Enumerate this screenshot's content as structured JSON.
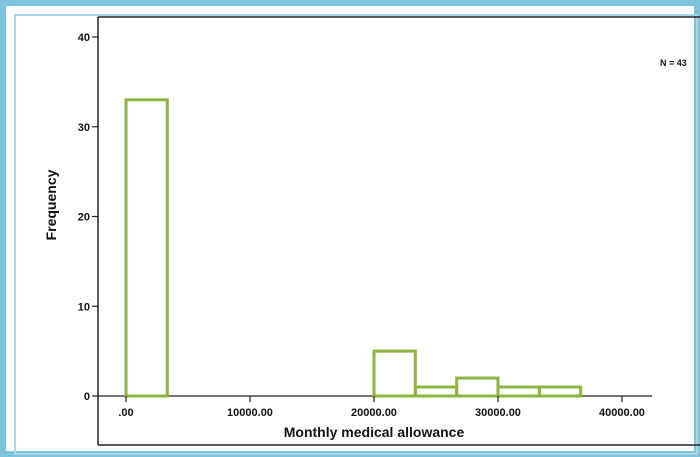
{
  "chart_data": {
    "type": "bar",
    "subtype": "histogram",
    "xlabel": "Monthly medical allowance",
    "ylabel": "Frequency",
    "x_ticks": [
      ".00",
      "10000.00",
      "20000.00",
      "30000.00",
      "40000.00"
    ],
    "x_tick_values": [
      0,
      10000,
      20000,
      30000,
      40000
    ],
    "y_ticks": [
      0,
      10,
      20,
      30,
      40
    ],
    "ylim": [
      0,
      40
    ],
    "bins": [
      {
        "start": 0,
        "end": 3333,
        "value": 33
      },
      {
        "start": 20000,
        "end": 23333,
        "value": 5
      },
      {
        "start": 23333,
        "end": 26667,
        "value": 1
      },
      {
        "start": 26667,
        "end": 30000,
        "value": 2
      },
      {
        "start": 30000,
        "end": 33333,
        "value": 1
      },
      {
        "start": 33333,
        "end": 36667,
        "value": 1
      }
    ],
    "annotation": "N = 43",
    "bar_color": "#8db542",
    "grid": false
  }
}
